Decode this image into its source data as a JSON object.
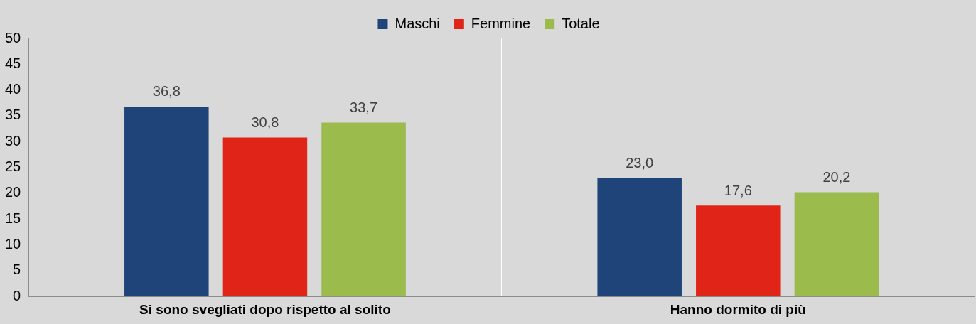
{
  "chart_data": {
    "type": "bar",
    "categories": [
      "Si sono svegliati dopo rispetto al solito",
      "Hanno dormito di più"
    ],
    "series": [
      {
        "name": "Maschi",
        "color": "#1f447a",
        "values": [
          36.8,
          23.0
        ],
        "value_labels": [
          "36,8",
          "23,0"
        ]
      },
      {
        "name": "Femmine",
        "color": "#e02518",
        "values": [
          30.8,
          17.6
        ],
        "value_labels": [
          "30,8",
          "17,6"
        ]
      },
      {
        "name": "Totale",
        "color": "#9bbb4d",
        "values": [
          33.7,
          20.2
        ],
        "value_labels": [
          "33,7",
          "20,2"
        ]
      }
    ],
    "ylim": [
      0,
      50
    ],
    "yticks": [
      0,
      5,
      10,
      15,
      20,
      25,
      30,
      35,
      40,
      45,
      50
    ],
    "grid": "x",
    "legend": "top"
  }
}
